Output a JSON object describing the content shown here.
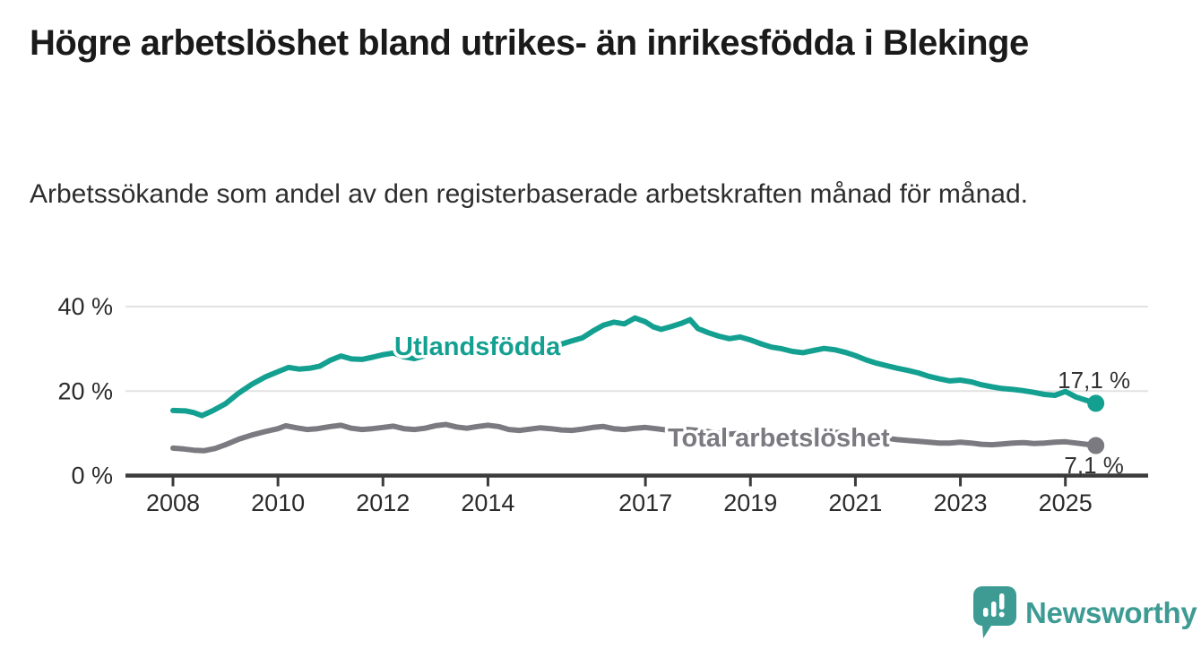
{
  "header": {
    "title": "Högre arbetslöshet bland utrikes- än inrikesfödda i Blekinge",
    "subtitle": "Arbetssökande som andel av den registerbaserade arbetskraften månad för månad."
  },
  "chart_data": {
    "type": "line",
    "title": "",
    "xlabel": "",
    "ylabel": "",
    "x_unit": "year (monthly observations)",
    "xlim": [
      2007.9,
      2026.5
    ],
    "ylim": [
      0,
      42
    ],
    "grid": "horizontal",
    "legend_position": "inline-labels",
    "x_ticks": [
      {
        "year": 2008,
        "label": "2008"
      },
      {
        "year": 2010,
        "label": "2010"
      },
      {
        "year": 2012,
        "label": "2012"
      },
      {
        "year": 2014,
        "label": "2014"
      },
      {
        "year": 2017,
        "label": "2017"
      },
      {
        "year": 2019,
        "label": "2019"
      },
      {
        "year": 2021,
        "label": "2021"
      },
      {
        "year": 2023,
        "label": "2023"
      },
      {
        "year": 2025,
        "label": "2025"
      }
    ],
    "y_ticks": [
      {
        "value": 0,
        "label": "0 %"
      },
      {
        "value": 20,
        "label": "20 %"
      },
      {
        "value": 40,
        "label": "40 %"
      }
    ],
    "series": [
      {
        "name": "Utlandsfödda",
        "label_text": "Utlandsfödda",
        "color": "#14a091",
        "end_value": 17.1,
        "end_label": "17,1 %",
        "end_label_position": "above",
        "points": [
          [
            2008.0,
            15.4
          ],
          [
            2008.25,
            15.3
          ],
          [
            2008.4,
            14.9
          ],
          [
            2008.55,
            14.2
          ],
          [
            2008.75,
            15.3
          ],
          [
            2009.0,
            17.0
          ],
          [
            2009.25,
            19.5
          ],
          [
            2009.5,
            21.6
          ],
          [
            2009.75,
            23.3
          ],
          [
            2010.0,
            24.6
          ],
          [
            2010.2,
            25.6
          ],
          [
            2010.4,
            25.2
          ],
          [
            2010.6,
            25.4
          ],
          [
            2010.8,
            25.9
          ],
          [
            2011.0,
            27.3
          ],
          [
            2011.2,
            28.3
          ],
          [
            2011.4,
            27.6
          ],
          [
            2011.6,
            27.5
          ],
          [
            2011.8,
            28.0
          ],
          [
            2012.0,
            28.6
          ],
          [
            2012.2,
            29.0
          ],
          [
            2012.4,
            28.1
          ],
          [
            2012.6,
            27.7
          ],
          [
            2012.8,
            28.4
          ],
          [
            2013.0,
            29.6
          ],
          [
            2013.2,
            30.1
          ],
          [
            2013.4,
            29.5
          ],
          [
            2013.6,
            29.2
          ],
          [
            2013.8,
            29.9
          ],
          [
            2014.0,
            30.2
          ],
          [
            2014.2,
            29.9
          ],
          [
            2014.4,
            29.3
          ],
          [
            2014.6,
            29.6
          ],
          [
            2014.8,
            30.1
          ],
          [
            2015.0,
            30.7
          ],
          [
            2015.2,
            31.3
          ],
          [
            2015.4,
            31.1
          ],
          [
            2015.6,
            31.9
          ],
          [
            2015.8,
            32.6
          ],
          [
            2016.0,
            34.2
          ],
          [
            2016.2,
            35.6
          ],
          [
            2016.4,
            36.3
          ],
          [
            2016.6,
            35.9
          ],
          [
            2016.8,
            37.3
          ],
          [
            2017.0,
            36.4
          ],
          [
            2017.15,
            35.2
          ],
          [
            2017.3,
            34.6
          ],
          [
            2017.5,
            35.3
          ],
          [
            2017.7,
            36.1
          ],
          [
            2017.85,
            36.9
          ],
          [
            2018.0,
            34.8
          ],
          [
            2018.2,
            33.8
          ],
          [
            2018.4,
            33.0
          ],
          [
            2018.6,
            32.4
          ],
          [
            2018.8,
            32.8
          ],
          [
            2019.0,
            32.1
          ],
          [
            2019.2,
            31.2
          ],
          [
            2019.4,
            30.4
          ],
          [
            2019.6,
            30.0
          ],
          [
            2019.8,
            29.4
          ],
          [
            2020.0,
            29.1
          ],
          [
            2020.2,
            29.6
          ],
          [
            2020.4,
            30.1
          ],
          [
            2020.6,
            29.8
          ],
          [
            2020.8,
            29.2
          ],
          [
            2021.0,
            28.4
          ],
          [
            2021.2,
            27.4
          ],
          [
            2021.4,
            26.6
          ],
          [
            2021.6,
            26.0
          ],
          [
            2021.8,
            25.4
          ],
          [
            2022.0,
            24.9
          ],
          [
            2022.2,
            24.3
          ],
          [
            2022.4,
            23.5
          ],
          [
            2022.6,
            22.9
          ],
          [
            2022.8,
            22.4
          ],
          [
            2023.0,
            22.6
          ],
          [
            2023.2,
            22.2
          ],
          [
            2023.4,
            21.5
          ],
          [
            2023.6,
            21.0
          ],
          [
            2023.8,
            20.6
          ],
          [
            2024.0,
            20.4
          ],
          [
            2024.2,
            20.1
          ],
          [
            2024.4,
            19.7
          ],
          [
            2024.6,
            19.2
          ],
          [
            2024.8,
            19.0
          ],
          [
            2025.0,
            19.9
          ],
          [
            2025.2,
            18.6
          ],
          [
            2025.4,
            17.8
          ],
          [
            2025.58,
            17.1
          ]
        ]
      },
      {
        "name": "Total arbetslöshet",
        "label_text": "Total arbetslöshet",
        "color": "#7a7a80",
        "end_value": 7.1,
        "end_label": "7,1 %",
        "end_label_position": "below",
        "points": [
          [
            2008.0,
            6.5
          ],
          [
            2008.2,
            6.3
          ],
          [
            2008.4,
            6.0
          ],
          [
            2008.6,
            5.9
          ],
          [
            2008.8,
            6.4
          ],
          [
            2009.0,
            7.3
          ],
          [
            2009.25,
            8.6
          ],
          [
            2009.5,
            9.6
          ],
          [
            2009.75,
            10.4
          ],
          [
            2010.0,
            11.1
          ],
          [
            2010.15,
            11.8
          ],
          [
            2010.35,
            11.3
          ],
          [
            2010.55,
            10.9
          ],
          [
            2010.75,
            11.1
          ],
          [
            2011.0,
            11.6
          ],
          [
            2011.2,
            11.9
          ],
          [
            2011.4,
            11.2
          ],
          [
            2011.6,
            10.9
          ],
          [
            2011.8,
            11.1
          ],
          [
            2012.0,
            11.4
          ],
          [
            2012.2,
            11.7
          ],
          [
            2012.4,
            11.1
          ],
          [
            2012.6,
            10.9
          ],
          [
            2012.8,
            11.2
          ],
          [
            2013.0,
            11.8
          ],
          [
            2013.2,
            12.1
          ],
          [
            2013.4,
            11.5
          ],
          [
            2013.6,
            11.2
          ],
          [
            2013.8,
            11.6
          ],
          [
            2014.0,
            11.9
          ],
          [
            2014.2,
            11.6
          ],
          [
            2014.4,
            10.9
          ],
          [
            2014.6,
            10.7
          ],
          [
            2014.8,
            11.0
          ],
          [
            2015.0,
            11.3
          ],
          [
            2015.2,
            11.1
          ],
          [
            2015.4,
            10.8
          ],
          [
            2015.6,
            10.7
          ],
          [
            2015.8,
            11.0
          ],
          [
            2016.0,
            11.4
          ],
          [
            2016.2,
            11.6
          ],
          [
            2016.4,
            11.1
          ],
          [
            2016.6,
            10.9
          ],
          [
            2016.8,
            11.2
          ],
          [
            2017.0,
            11.4
          ],
          [
            2017.2,
            11.1
          ],
          [
            2017.4,
            10.8
          ],
          [
            2017.6,
            10.6
          ],
          [
            2017.8,
            10.9
          ],
          [
            2018.0,
            10.7
          ],
          [
            2018.2,
            10.4
          ],
          [
            2018.4,
            10.0
          ],
          [
            2018.6,
            9.8
          ],
          [
            2018.8,
            10.0
          ],
          [
            2019.0,
            9.9
          ],
          [
            2019.2,
            9.7
          ],
          [
            2019.4,
            9.4
          ],
          [
            2019.6,
            9.3
          ],
          [
            2019.8,
            9.5
          ],
          [
            2020.0,
            9.7
          ],
          [
            2020.2,
            10.2
          ],
          [
            2020.4,
            10.5
          ],
          [
            2020.6,
            10.3
          ],
          [
            2020.8,
            10.0
          ],
          [
            2021.0,
            9.8
          ],
          [
            2021.2,
            9.5
          ],
          [
            2021.4,
            9.1
          ],
          [
            2021.6,
            8.8
          ],
          [
            2021.8,
            8.5
          ],
          [
            2022.0,
            8.3
          ],
          [
            2022.2,
            8.1
          ],
          [
            2022.4,
            7.9
          ],
          [
            2022.6,
            7.7
          ],
          [
            2022.8,
            7.7
          ],
          [
            2023.0,
            7.9
          ],
          [
            2023.2,
            7.7
          ],
          [
            2023.4,
            7.4
          ],
          [
            2023.6,
            7.3
          ],
          [
            2023.8,
            7.5
          ],
          [
            2024.0,
            7.7
          ],
          [
            2024.2,
            7.8
          ],
          [
            2024.4,
            7.6
          ],
          [
            2024.6,
            7.7
          ],
          [
            2024.8,
            7.9
          ],
          [
            2025.0,
            8.0
          ],
          [
            2025.2,
            7.7
          ],
          [
            2025.4,
            7.4
          ],
          [
            2025.58,
            7.1
          ]
        ]
      }
    ],
    "colors": {
      "grid_line": "#e2e2e2",
      "axis_line": "#3b3b3b",
      "tick_text": "#2b2b2b",
      "annotation_text": "#333333"
    }
  },
  "footer": {
    "brand": "Newsworthy",
    "brand_color": "#3d9b94",
    "logo_icon": "bar-chart-speech-bubble-icon"
  }
}
